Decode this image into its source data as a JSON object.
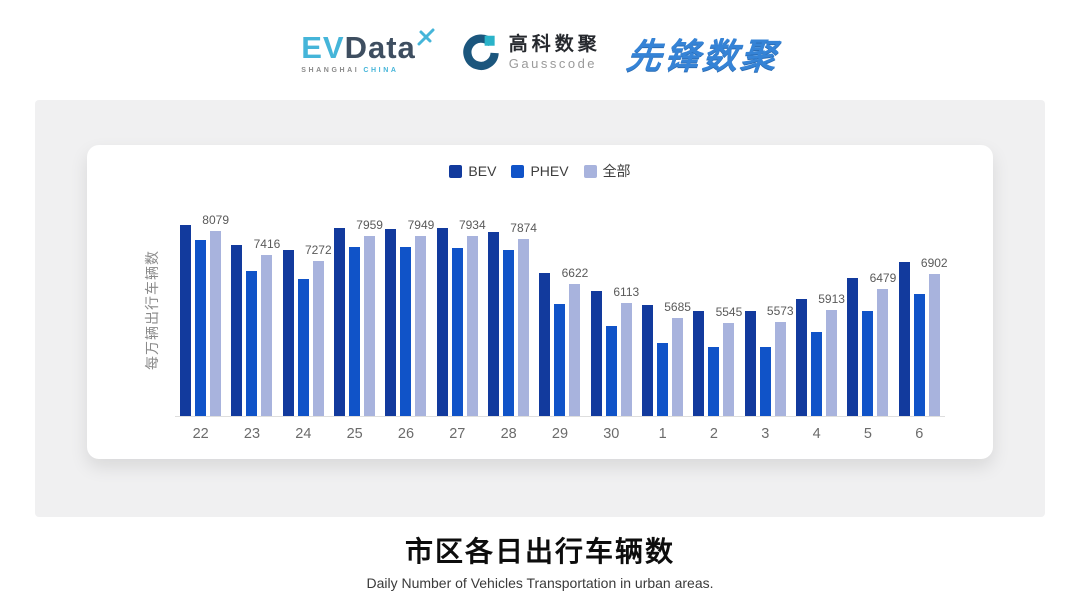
{
  "header": {
    "evdata": {
      "ev": "EV",
      "data": "Data",
      "sub_left": "SHANGHAI",
      "sub_right": "CHINA",
      "cyan": "#45b5d9",
      "dark": "#3e4e60"
    },
    "gausscode": {
      "cn": "高科数聚",
      "en": "Gausscode",
      "mark_dark": "#1b567d",
      "mark_cyan": "#2ab3c9"
    },
    "xianfeng": {
      "text": "先锋数聚",
      "color": "#3583d6"
    }
  },
  "chart_data": {
    "type": "bar",
    "title": "市区各日出行车辆数",
    "subtitle": "Daily Number of Vehicles Transportation in urban areas.",
    "ylabel": "每万辆出行车辆数",
    "xlabel": "",
    "categories": [
      "22",
      "23",
      "24",
      "25",
      "26",
      "27",
      "28",
      "29",
      "30",
      "1",
      "2",
      "3",
      "4",
      "5",
      "6"
    ],
    "series": [
      {
        "name": "BEV",
        "color": "#123a9d",
        "values": [
          8245,
          7695,
          7575,
          8175,
          8145,
          8160,
          8070,
          6920,
          6435,
          6055,
          5890,
          5900,
          6220,
          6795,
          7225
        ]
      },
      {
        "name": "PHEV",
        "color": "#1053c8",
        "values": [
          7850,
          6975,
          6775,
          7650,
          7635,
          7620,
          7565,
          6075,
          5470,
          5015,
          4895,
          4890,
          5310,
          5890,
          6360
        ]
      },
      {
        "name": "全部",
        "color": "#a8b3dd",
        "values": [
          8079,
          7416,
          7272,
          7959,
          7949,
          7934,
          7874,
          6622,
          6113,
          5685,
          5545,
          5573,
          5913,
          6479,
          6902
        ]
      }
    ],
    "data_labels": [
      8079,
      7416,
      7272,
      7959,
      7949,
      7934,
      7874,
      6622,
      6113,
      5685,
      5545,
      5573,
      5913,
      6479,
      6902
    ],
    "labeled_series": "全部",
    "ylim": [
      3000,
      9100
    ],
    "grid": false,
    "legend_position": "top",
    "axis_line_color": "#dedede",
    "tick_color": "#6b6b6b",
    "label_color": "#5a5a5a"
  }
}
